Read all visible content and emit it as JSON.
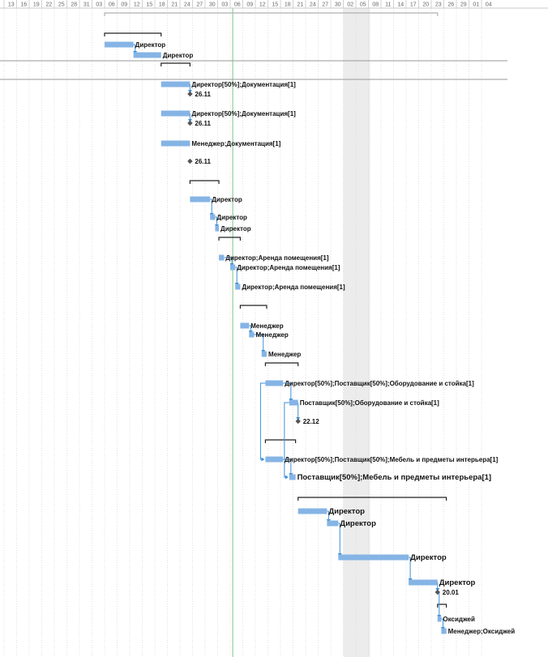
{
  "timescale": {
    "ticks": [
      "13",
      "16",
      "19",
      "22",
      "25",
      "28",
      "31",
      "03",
      "06",
      "09",
      "12",
      "15",
      "18",
      "21",
      "24",
      "27",
      "30",
      "03",
      "06",
      "09",
      "12",
      "15",
      "18",
      "21",
      "24",
      "27",
      "30",
      "02",
      "05",
      "08",
      "11",
      "14",
      "17",
      "20",
      "23",
      "26",
      "29",
      "01",
      "04"
    ],
    "shaded_ticks": [
      27,
      29
    ]
  },
  "tasks": [
    {
      "label": "Директор",
      "type": "bar",
      "start": 8.0,
      "end": 10.3
    },
    {
      "label": "Директор",
      "type": "bar",
      "start": 10.3,
      "end": 12.5
    },
    {
      "label": "Директор[50%];Документация[1]",
      "type": "bar",
      "start": 12.5,
      "end": 14.8
    },
    {
      "label": "26.11",
      "type": "milestone",
      "start": 14.8
    },
    {
      "label": "Директор[50%];Документация[1]",
      "type": "bar",
      "start": 12.5,
      "end": 14.8
    },
    {
      "label": "26.11",
      "type": "milestone",
      "start": 14.8
    },
    {
      "label": "Менеджер;Документация[1]",
      "type": "bar",
      "start": 12.5,
      "end": 14.8
    },
    {
      "label": "26.11",
      "type": "milestone",
      "start": 14.8
    },
    {
      "label": "Директор",
      "type": "bar",
      "start": 14.8,
      "end": 16.4
    },
    {
      "label": "Директор",
      "type": "bar",
      "start": 16.4,
      "end": 16.8
    },
    {
      "label": "Директор",
      "type": "bar",
      "start": 16.8,
      "end": 17.1
    },
    {
      "label": "Директор;Аренда помещения[1]",
      "type": "bar",
      "start": 17.1,
      "end": 17.5
    },
    {
      "label": "Директор;Аренда помещения[1]",
      "type": "bar",
      "start": 18.0,
      "end": 18.4
    },
    {
      "label": "Директор;Аренда помещения[1]",
      "type": "bar",
      "start": 18.4,
      "end": 18.8
    },
    {
      "label": "Менеджер",
      "type": "bar",
      "start": 18.8,
      "end": 19.5
    },
    {
      "label": "Менеджер",
      "type": "bar",
      "start": 19.5,
      "end": 19.9
    },
    {
      "label": "Менеджер",
      "type": "bar",
      "start": 20.5,
      "end": 20.9
    },
    {
      "label": "Директор[50%];Поставщик[50%];Оборудование и стойка[1]",
      "type": "bar",
      "start": 20.8,
      "end": 22.2
    },
    {
      "label": "Поставщик[50%];Оборудование и стойка[1]",
      "type": "bar",
      "start": 22.7,
      "end": 23.4
    },
    {
      "label": "22.12",
      "type": "milestone",
      "start": 23.4
    },
    {
      "label": "Директор[50%];Поставщик[50%];Мебель и предметы интерьера[1]",
      "type": "bar",
      "start": 20.8,
      "end": 22.2
    },
    {
      "label": "Поставщик[50%];Мебель и предметы интерьера[1]",
      "type": "bar",
      "start": 22.7,
      "end": 23.2
    },
    {
      "label": "Директор",
      "type": "bar",
      "start": 23.4,
      "end": 25.7
    },
    {
      "label": "Директор",
      "type": "bar",
      "start": 25.7,
      "end": 26.6
    },
    {
      "label": "Директор",
      "type": "bar",
      "start": 26.6,
      "end": 32.2
    },
    {
      "label": "Директор",
      "type": "bar",
      "start": 32.2,
      "end": 34.5
    },
    {
      "label": "20.01",
      "type": "milestone",
      "start": 34.5
    },
    {
      "label": "Оксиджей",
      "type": "bar",
      "start": 34.5,
      "end": 34.8
    },
    {
      "label": "Менеджер;Оксиджей",
      "type": "bar",
      "start": 34.8,
      "end": 35.2
    }
  ]
}
